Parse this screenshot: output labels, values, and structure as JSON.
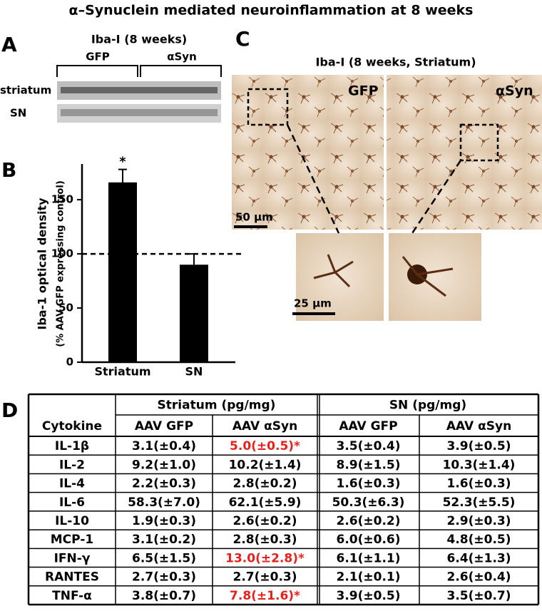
{
  "title": "α–Synuclein mediated neuroinflammation at 8 weeks",
  "panel_a": {
    "label": "A",
    "title": "Iba-I (8 weeks)",
    "groups": [
      "GFP",
      "αSyn"
    ],
    "rows": [
      "striatum",
      "SN"
    ]
  },
  "chart_data": {
    "type": "bar",
    "panel_label": "B",
    "ylabel": "Iba-1 optical density",
    "ylabel2": "(% AAV GFP expressing control)",
    "categories": [
      "Striatum",
      "SN"
    ],
    "values": [
      166,
      90
    ],
    "errors": [
      12,
      10
    ],
    "color": "#000000",
    "ylim": [
      0,
      183
    ],
    "yticks": [
      0,
      50,
      100,
      150
    ],
    "reference_line": 100,
    "annotation": {
      "category": "Striatum",
      "text": "*"
    }
  },
  "panel_c": {
    "label": "C",
    "title": "Iba-I (8 weeks, Striatum)",
    "images": [
      "GFP",
      "αSyn"
    ],
    "scale_bars": [
      "50 μm",
      "25 μm"
    ]
  },
  "panel_d": {
    "label": "D",
    "significant_color": "#e8201c",
    "header_groups": [
      "Striatum (pg/mg)",
      "SN (pg/mg)"
    ],
    "columns": [
      "Cytokine",
      "AAV GFP",
      "AAV αSyn",
      "AAV GFP",
      "AAV αSyn"
    ],
    "rows": [
      [
        "IL-1β",
        "3.1(±0.4)",
        {
          "text": "5.0(±0.5)*",
          "significant": true
        },
        "3.5(±0.4)",
        "3.9(±0.5)"
      ],
      [
        "IL-2",
        "9.2(±1.0)",
        "10.2(±1.4)",
        "8.9(±1.5)",
        "10.3(±1.4)"
      ],
      [
        "IL-4",
        "2.2(±0.3)",
        "2.8(±0.2)",
        "1.6(±0.3)",
        "1.6(±0.3)"
      ],
      [
        "IL-6",
        "58.3(±7.0)",
        "62.1(±5.9)",
        "50.3(±6.3)",
        "52.3(±5.5)"
      ],
      [
        "IL-10",
        "1.9(±0.3)",
        "2.6(±0.2)",
        "2.6(±0.2)",
        "2.9(±0.3)"
      ],
      [
        "MCP-1",
        "3.1(±0.2)",
        "2.8(±0.3)",
        "6.0(±0.6)",
        "4.8(±0.5)"
      ],
      [
        "IFN-γ",
        "6.5(±1.5)",
        {
          "text": "13.0(±2.8)*",
          "significant": true
        },
        "6.1(±1.1)",
        "6.4(±1.3)"
      ],
      [
        "RANTES",
        "2.7(±0.3)",
        "2.7(±0.3)",
        "2.1(±0.1)",
        "2.6(±0.4)"
      ],
      [
        "TNF-α",
        "3.8(±0.7)",
        {
          "text": "7.8(±1.6)*",
          "significant": true
        },
        "3.9(±0.5)",
        "3.5(±0.7)"
      ]
    ]
  }
}
